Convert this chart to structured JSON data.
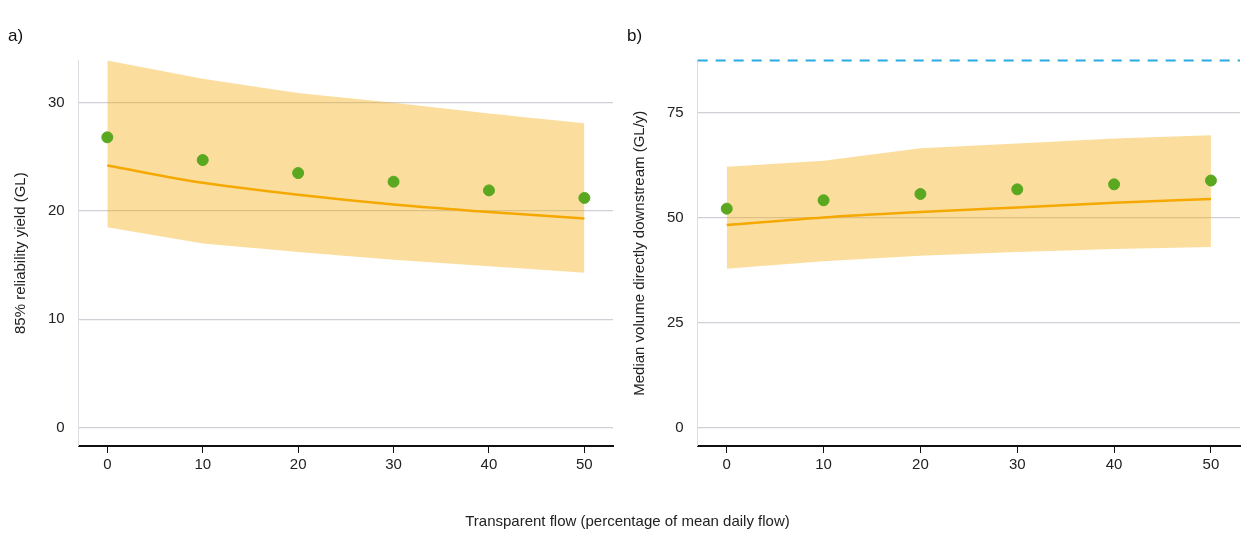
{
  "chart_data": [
    {
      "type": "line",
      "title": "a)",
      "ylabel": "85% reliability yield (GL)",
      "xlabel": "Transparent flow (percentage of mean daily flow)",
      "x": [
        0,
        10,
        20,
        30,
        40,
        50
      ],
      "xlim": [
        -3,
        53
      ],
      "xticks": [
        0,
        10,
        20,
        30,
        40,
        50
      ],
      "ylim": [
        -1.7,
        33.9
      ],
      "yticks": [
        0,
        10,
        20,
        30
      ],
      "grid": "y",
      "legend": false,
      "series": [
        {
          "type": "line",
          "color": "#f5a800",
          "marker": "none",
          "line_style": "solid",
          "values": [
            24.2,
            22.6,
            21.5,
            20.6,
            19.9,
            19.3
          ],
          "lower": [
            18.5,
            17.0,
            16.2,
            15.5,
            14.9,
            14.3
          ],
          "upper": [
            33.9,
            32.2,
            30.9,
            30.0,
            29.0,
            28.1
          ]
        },
        {
          "type": "scatter",
          "color": "#5aa820",
          "marker": "circle",
          "values": [
            26.8,
            24.7,
            23.5,
            22.7,
            21.9,
            21.2
          ]
        }
      ]
    },
    {
      "type": "line",
      "title": "b)",
      "ylabel": "Median volume directly downstream (GL/y)",
      "x": [
        0,
        10,
        20,
        30,
        40,
        50
      ],
      "xlim": [
        -3,
        53
      ],
      "xticks": [
        0,
        10,
        20,
        30,
        40,
        50
      ],
      "ylim": [
        -4.4,
        87.4
      ],
      "yticks": [
        0,
        25,
        50,
        75
      ],
      "grid": "y",
      "legend": false,
      "ref_lines": [
        {
          "axis": "y",
          "value": 87.4,
          "color": "#29aae1",
          "line_style": "dashed"
        }
      ],
      "series": [
        {
          "type": "line",
          "color": "#f5a800",
          "marker": "none",
          "line_style": "solid",
          "values": [
            48.2,
            50.0,
            51.3,
            52.4,
            53.5,
            54.4
          ],
          "lower": [
            37.8,
            39.6,
            40.9,
            41.8,
            42.5,
            43.0
          ],
          "upper": [
            62.1,
            63.5,
            66.5,
            67.6,
            68.8,
            69.6
          ]
        },
        {
          "type": "scatter",
          "color": "#5aa820",
          "marker": "circle",
          "values": [
            52.1,
            54.1,
            55.6,
            56.7,
            57.9,
            58.8
          ]
        }
      ]
    }
  ]
}
